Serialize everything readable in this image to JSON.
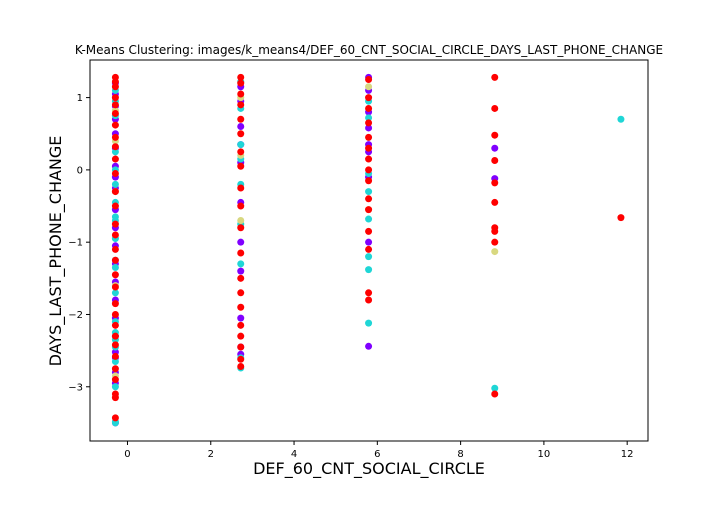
{
  "chart_data": {
    "type": "scatter",
    "title": "K-Means Clustering: images/k_means4/DEF_60_CNT_SOCIAL_CIRCLE_DAYS_LAST_PHONE_CHANGE",
    "xlabel": "DEF_60_CNT_SOCIAL_CIRCLE",
    "ylabel": "DAYS_LAST_PHONE_CHANGE",
    "xlim": [
      -0.9,
      12.5
    ],
    "ylim": [
      -3.75,
      1.52
    ],
    "xticks": [
      0,
      2,
      4,
      6,
      8,
      10,
      12
    ],
    "yticks": [
      -3,
      -2,
      -1,
      0,
      1
    ],
    "grid": false,
    "colors": {
      "cluster_0": "#8000ff",
      "cluster_1": "#1fd6d6",
      "cluster_2": "#d8d880",
      "cluster_3": "#ff0000"
    },
    "series": [
      {
        "color_key": "cluster_0",
        "x": [
          -0.29,
          -0.29,
          -0.29,
          -0.29,
          -0.29,
          -0.29,
          -0.29,
          -0.29,
          -0.29,
          -0.29,
          -0.29,
          -0.29,
          -0.29,
          -0.29,
          -0.29,
          -0.29,
          -0.29,
          -0.29,
          -0.29,
          -0.29,
          -0.29,
          -0.29,
          2.72,
          2.72,
          2.72,
          2.72,
          2.72,
          2.72,
          2.72,
          2.72,
          2.72,
          2.72,
          2.72,
          5.79,
          5.79,
          5.79,
          5.79,
          5.79,
          5.79,
          5.79,
          5.79,
          5.79,
          8.82,
          8.82
        ],
        "y": [
          1.2,
          1.05,
          0.88,
          0.7,
          0.5,
          0.3,
          0.05,
          -0.1,
          -0.25,
          -0.55,
          -0.8,
          -1.05,
          -1.3,
          -1.55,
          -1.8,
          -2.05,
          -2.3,
          -2.52,
          -2.6,
          -2.8,
          -2.95,
          -3.5,
          1.15,
          0.95,
          0.6,
          0.35,
          0.1,
          -0.45,
          -1.0,
          -1.4,
          -2.05,
          -2.45,
          -2.55,
          1.28,
          1.1,
          0.8,
          0.58,
          0.35,
          0.25,
          -0.1,
          -1.0,
          -2.44,
          0.3,
          -0.12
        ]
      },
      {
        "color_key": "cluster_1",
        "x": [
          -0.29,
          -0.29,
          -0.29,
          -0.29,
          -0.29,
          -0.29,
          -0.29,
          -0.29,
          -0.29,
          -0.29,
          -0.29,
          -0.29,
          -0.29,
          -0.29,
          -0.29,
          -0.29,
          -0.29,
          -0.29,
          -0.29,
          -0.29,
          -0.29,
          2.72,
          2.72,
          2.72,
          2.72,
          2.72,
          2.72,
          2.72,
          2.72,
          2.72,
          5.79,
          5.79,
          5.79,
          5.79,
          5.79,
          5.79,
          5.79,
          5.79,
          8.82,
          11.85
        ],
        "y": [
          1.1,
          0.95,
          0.75,
          0.25,
          0.0,
          -0.2,
          -0.45,
          -0.65,
          -0.7,
          -0.95,
          -1.25,
          -1.35,
          -1.7,
          -2.1,
          -2.25,
          -2.35,
          -2.45,
          -2.65,
          -3.0,
          -3.48,
          -3.5,
          1.22,
          0.85,
          0.35,
          0.15,
          -0.2,
          -0.75,
          -1.3,
          -2.6,
          -2.74,
          0.95,
          0.72,
          -0.05,
          -0.3,
          -0.68,
          -1.2,
          -1.38,
          -2.12,
          -3.02,
          0.7
        ]
      },
      {
        "color_key": "cluster_2",
        "x": [
          -0.29,
          -0.29,
          -0.29,
          -0.29,
          -0.29,
          2.72,
          2.72,
          2.72,
          5.79,
          5.79,
          8.82
        ],
        "y": [
          0.82,
          0.4,
          -0.3,
          -1.6,
          -2.85,
          1.0,
          0.2,
          -0.7,
          1.15,
          -0.55,
          -1.13
        ]
      },
      {
        "color_key": "cluster_3",
        "x": [
          -0.29,
          -0.29,
          -0.29,
          -0.29,
          -0.29,
          -0.29,
          -0.29,
          -0.29,
          -0.29,
          -0.29,
          -0.29,
          -0.29,
          -0.29,
          -0.29,
          -0.29,
          -0.29,
          -0.29,
          -0.29,
          -0.29,
          -0.29,
          -0.29,
          -0.29,
          -0.29,
          -0.29,
          -0.29,
          -0.29,
          -0.29,
          -0.29,
          -0.29,
          -0.29,
          2.72,
          2.72,
          2.72,
          2.72,
          2.72,
          2.72,
          2.72,
          2.72,
          2.72,
          2.72,
          2.72,
          2.72,
          2.72,
          2.72,
          2.72,
          2.72,
          2.72,
          2.72,
          2.72,
          2.72,
          5.79,
          5.79,
          5.79,
          5.79,
          5.79,
          5.79,
          5.79,
          5.79,
          5.79,
          5.79,
          5.79,
          5.79,
          5.79,
          5.79,
          5.79,
          8.82,
          8.82,
          8.82,
          8.82,
          8.82,
          8.82,
          8.82,
          8.82,
          8.82,
          8.82,
          11.85
        ],
        "y": [
          1.28,
          1.22,
          1.15,
          1.0,
          0.9,
          0.78,
          0.62,
          0.45,
          0.32,
          0.15,
          -0.05,
          -0.3,
          -0.5,
          -0.75,
          -0.9,
          -1.1,
          -1.25,
          -1.45,
          -1.62,
          -1.85,
          -2.0,
          -2.15,
          -2.3,
          -2.42,
          -2.58,
          -2.75,
          -2.9,
          -3.1,
          -3.15,
          -3.43,
          1.28,
          1.2,
          1.05,
          0.9,
          0.7,
          0.5,
          0.25,
          0.05,
          -0.25,
          -0.5,
          -0.8,
          -1.15,
          -1.5,
          -1.7,
          -1.9,
          -2.15,
          -2.3,
          -2.45,
          -2.62,
          -2.72,
          1.25,
          1.0,
          0.85,
          0.65,
          0.45,
          0.3,
          0.15,
          0.0,
          -0.15,
          -0.4,
          -0.55,
          -0.85,
          -1.1,
          -1.7,
          -1.8,
          1.28,
          0.85,
          0.48,
          0.13,
          -0.18,
          -0.45,
          -0.8,
          -0.85,
          -1.0,
          -3.1,
          -0.66
        ]
      }
    ]
  }
}
